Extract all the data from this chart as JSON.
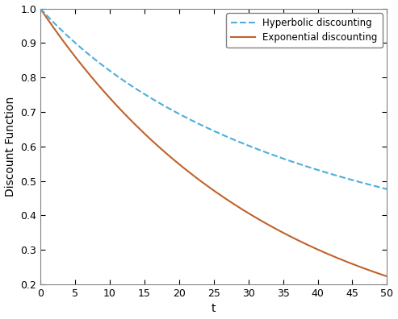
{
  "title": "",
  "xlabel": "t",
  "ylabel": "Discount Function",
  "xlim": [
    0,
    50
  ],
  "ylim": [
    0.2,
    1.0
  ],
  "xticks": [
    0,
    5,
    10,
    15,
    20,
    25,
    30,
    35,
    40,
    45,
    50
  ],
  "yticks": [
    0.2,
    0.3,
    0.4,
    0.5,
    0.6,
    0.7,
    0.8,
    0.9,
    1.0
  ],
  "hyperbolic_k": 0.022,
  "exponential_r": 0.03,
  "hyperbolic_color": "#4DAEDC",
  "exponential_color": "#C0622A",
  "hyperbolic_label": "Hyperbolic discounting",
  "exponential_label": "Exponential discounting",
  "line_width": 1.5,
  "background_color": "#FFFFFF",
  "spine_color": "#808080"
}
